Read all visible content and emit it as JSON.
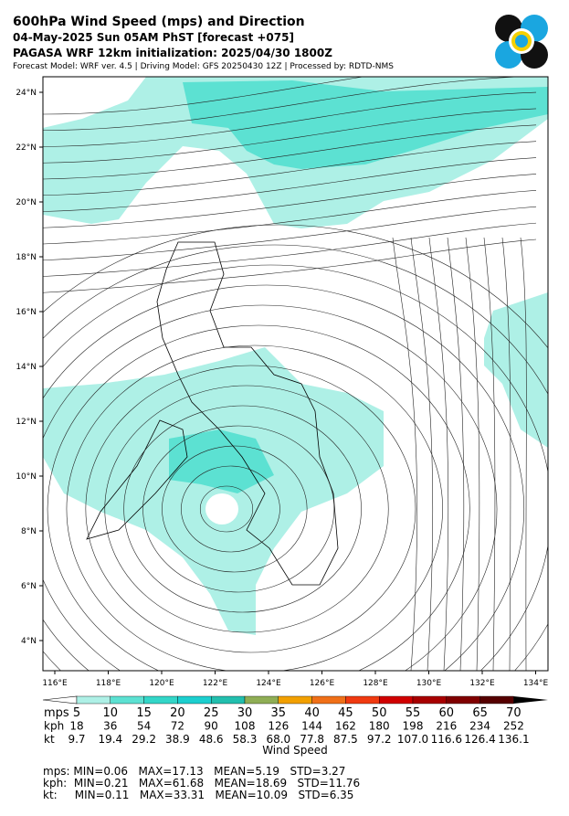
{
  "header": {
    "title": "600hPa Wind Speed (mps) and Direction",
    "line2": "04-May-2025 Sun 05AM PhST [forecast +075]",
    "line3": "PAGASA WRF 12km initialization: 2025/04/30 1800Z",
    "line4": "Forecast Model: WRF ver. 4.5 | Driving Model: GFS 20250430 12Z | Processed by: RDTD-NMS"
  },
  "map": {
    "lon_labels": [
      "116°E",
      "118°E",
      "120°E",
      "122°E",
      "124°E",
      "126°E",
      "128°E",
      "130°E",
      "132°E",
      "134°E"
    ],
    "lat_labels": [
      "24°N",
      "22°N",
      "20°N",
      "18°N",
      "16°N",
      "14°N",
      "12°N",
      "10°N",
      "8°N",
      "6°N",
      "4°N"
    ]
  },
  "colorbar": {
    "label": "Wind Speed",
    "colors": [
      "#aef0e6",
      "#5ce1d2",
      "#33d6c8",
      "#1ccfcf",
      "#22bfae",
      "#8fae55",
      "#f2a000",
      "#f07018",
      "#f03a10",
      "#d00000",
      "#a80000",
      "#800000",
      "#560000"
    ],
    "rows": [
      {
        "unit": "mps",
        "values": [
          "5",
          "10",
          "15",
          "20",
          "25",
          "30",
          "35",
          "40",
          "45",
          "50",
          "55",
          "60",
          "65",
          "70"
        ]
      },
      {
        "unit": "kph",
        "values": [
          "18",
          "36",
          "54",
          "72",
          "90",
          "108",
          "126",
          "144",
          "162",
          "180",
          "198",
          "216",
          "234",
          "252"
        ]
      },
      {
        "unit": "kt",
        "values": [
          "9.7",
          "19.4",
          "29.2",
          "38.9",
          "48.6",
          "58.3",
          "68.0",
          "77.8",
          "87.5",
          "97.2",
          "107.0",
          "116.6",
          "126.4",
          "136.1"
        ]
      }
    ]
  },
  "stats": [
    "mps: MIN=0.06   MAX=17.13   MEAN=5.19   STD=3.27",
    "kph:  MIN=0.21   MAX=61.68   MEAN=18.69   STD=11.76",
    "kt:     MIN=0.11   MAX=33.31   MEAN=10.09   STD=6.35"
  ]
}
